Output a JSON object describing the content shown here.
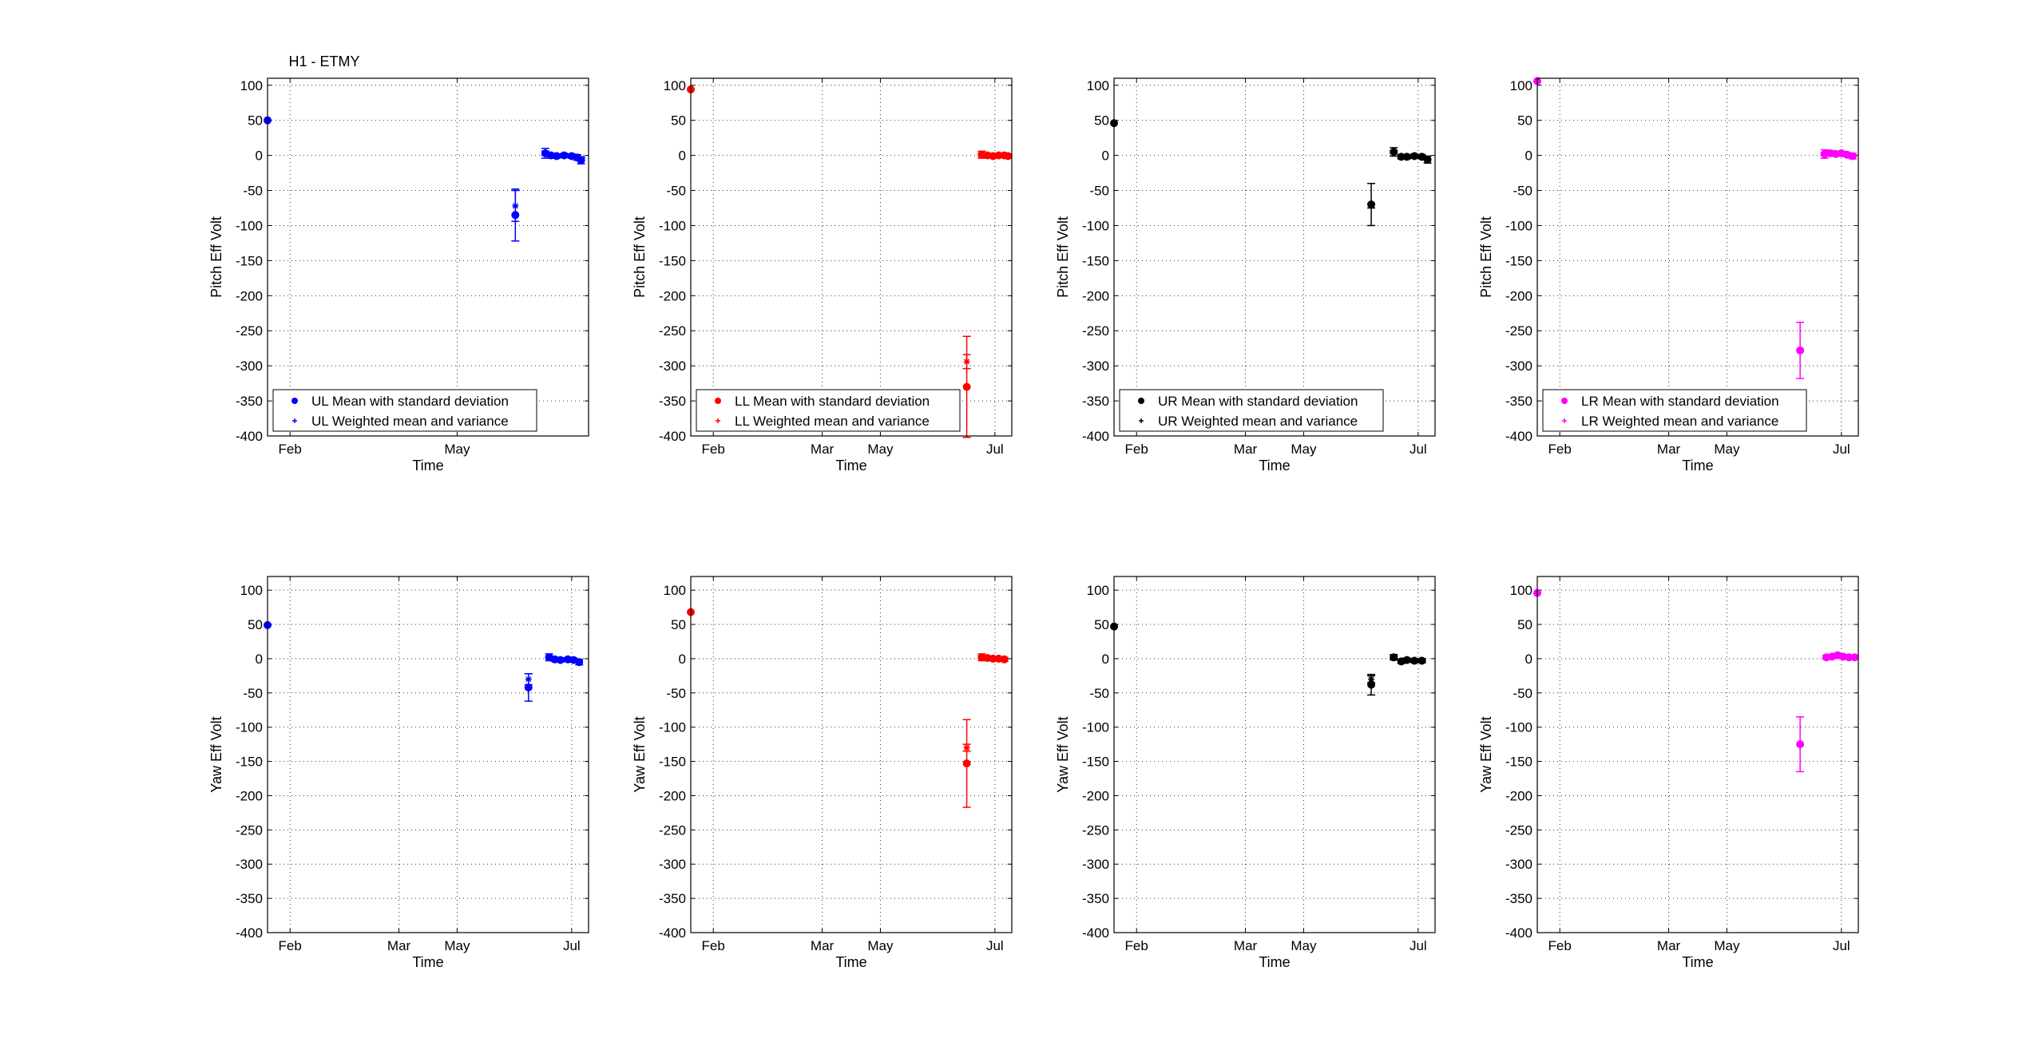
{
  "figure": {
    "title": "H1 - ETMY"
  },
  "chart_data": [
    {
      "type": "scatter",
      "title": "H1 - ETMY",
      "xlabel": "Time",
      "ylabel": "Pitch Eff Volt",
      "color": "#0000ff",
      "ylim": [
        -400,
        110
      ],
      "xlim": [
        "2015-01-20",
        "2015-07-10"
      ],
      "xticks": [
        {
          "date": "2015-02-01",
          "label": "Feb"
        },
        {
          "date": "2015-05-01",
          "label": "May"
        }
      ],
      "yticks": [
        100,
        50,
        0,
        -50,
        -100,
        -150,
        -200,
        -250,
        -300,
        -350,
        -400
      ],
      "grid": true,
      "legend_position": "bottom-left",
      "series": [
        {
          "name": "UL Mean with standard deviation",
          "marker": "dot",
          "points": [
            {
              "x": "2015-01-20",
              "y": 50,
              "err": 0
            },
            {
              "x": "2015-06-01",
              "y": -85,
              "err": 37
            },
            {
              "x": "2015-06-17",
              "y": 3,
              "err": 7
            },
            {
              "x": "2015-06-20",
              "y": 0,
              "err": 3
            },
            {
              "x": "2015-06-23",
              "y": -1,
              "err": 3
            },
            {
              "x": "2015-06-27",
              "y": 0,
              "err": 3
            },
            {
              "x": "2015-07-01",
              "y": -1,
              "err": 3
            },
            {
              "x": "2015-07-04",
              "y": -3,
              "err": 4
            },
            {
              "x": "2015-07-06",
              "y": -7,
              "err": 5
            }
          ]
        },
        {
          "name": "UL Weighted mean and variance",
          "marker": "star",
          "points": [
            {
              "x": "2015-06-01",
              "y": -72,
              "err": 22
            },
            {
              "x": "2015-06-17",
              "y": 3,
              "err": 3
            },
            {
              "x": "2015-06-23",
              "y": 0,
              "err": 2
            },
            {
              "x": "2015-07-01",
              "y": -1,
              "err": 2
            },
            {
              "x": "2015-07-06",
              "y": -6,
              "err": 2
            }
          ]
        }
      ]
    },
    {
      "type": "scatter",
      "title": "",
      "xlabel": "Time",
      "ylabel": "Pitch Eff Volt",
      "color": "#ff0000",
      "ylim": [
        -400,
        110
      ],
      "xlim": [
        "2015-01-20",
        "2015-07-10"
      ],
      "xticks": [
        {
          "date": "2015-02-01",
          "label": "Feb"
        },
        {
          "date": "2015-03-31",
          "label": "Mar"
        },
        {
          "date": "2015-05-01",
          "label": "May"
        },
        {
          "date": "2015-07-01",
          "label": "Jul"
        }
      ],
      "yticks": [
        100,
        50,
        0,
        -50,
        -100,
        -150,
        -200,
        -250,
        -300,
        -350,
        -400
      ],
      "grid": true,
      "legend_position": "bottom-left",
      "series": [
        {
          "name": "LL Mean with standard deviation",
          "marker": "dot",
          "points": [
            {
              "x": "2015-01-20",
              "y": 94,
              "err": 0
            },
            {
              "x": "2015-06-16",
              "y": -330,
              "err": 72
            },
            {
              "x": "2015-06-24",
              "y": 1,
              "err": 5
            },
            {
              "x": "2015-06-27",
              "y": 0,
              "err": 3
            },
            {
              "x": "2015-06-30",
              "y": -1,
              "err": 3
            },
            {
              "x": "2015-07-03",
              "y": 0,
              "err": 3
            },
            {
              "x": "2015-07-06",
              "y": 0,
              "err": 3
            },
            {
              "x": "2015-07-08",
              "y": -1,
              "err": 3
            }
          ]
        },
        {
          "name": "LL Weighted mean and variance",
          "marker": "star",
          "points": [
            {
              "x": "2015-06-16",
              "y": -294,
              "err": 10
            },
            {
              "x": "2015-06-24",
              "y": 1,
              "err": 2
            },
            {
              "x": "2015-06-30",
              "y": -1,
              "err": 2
            },
            {
              "x": "2015-07-06",
              "y": 0,
              "err": 2
            }
          ]
        }
      ]
    },
    {
      "type": "scatter",
      "title": "",
      "xlabel": "Time",
      "ylabel": "Pitch Eff Volt",
      "color": "#000000",
      "ylim": [
        -400,
        110
      ],
      "xlim": [
        "2015-01-20",
        "2015-07-10"
      ],
      "xticks": [
        {
          "date": "2015-02-01",
          "label": "Feb"
        },
        {
          "date": "2015-03-31",
          "label": "Mar"
        },
        {
          "date": "2015-05-01",
          "label": "May"
        },
        {
          "date": "2015-07-01",
          "label": "Jul"
        }
      ],
      "yticks": [
        100,
        50,
        0,
        -50,
        -100,
        -150,
        -200,
        -250,
        -300,
        -350,
        -400
      ],
      "grid": true,
      "legend_position": "bottom-left",
      "series": [
        {
          "name": "UR Mean with standard deviation",
          "marker": "dot",
          "points": [
            {
              "x": "2015-01-20",
              "y": 46,
              "err": 0
            },
            {
              "x": "2015-06-06",
              "y": -70,
              "err": 30
            },
            {
              "x": "2015-06-18",
              "y": 5,
              "err": 6
            },
            {
              "x": "2015-06-22",
              "y": -2,
              "err": 3
            },
            {
              "x": "2015-06-25",
              "y": -2,
              "err": 3
            },
            {
              "x": "2015-06-29",
              "y": -1,
              "err": 3
            },
            {
              "x": "2015-07-03",
              "y": -2,
              "err": 3
            },
            {
              "x": "2015-07-06",
              "y": -6,
              "err": 5
            }
          ]
        },
        {
          "name": "UR Weighted mean and variance",
          "marker": "star",
          "points": [
            {
              "x": "2015-06-06",
              "y": -72,
              "err": 3
            },
            {
              "x": "2015-06-18",
              "y": 5,
              "err": 2
            },
            {
              "x": "2015-06-25",
              "y": -2,
              "err": 2
            },
            {
              "x": "2015-07-03",
              "y": -2,
              "err": 2
            }
          ]
        }
      ]
    },
    {
      "type": "scatter",
      "title": "",
      "xlabel": "Time",
      "ylabel": "Pitch Eff Volt",
      "color": "#ff00ff",
      "ylim": [
        -400,
        110
      ],
      "xlim": [
        "2015-01-20",
        "2015-07-10"
      ],
      "xticks": [
        {
          "date": "2015-02-01",
          "label": "Feb"
        },
        {
          "date": "2015-03-31",
          "label": "Mar"
        },
        {
          "date": "2015-05-01",
          "label": "May"
        },
        {
          "date": "2015-07-01",
          "label": "Jul"
        }
      ],
      "yticks": [
        100,
        50,
        0,
        -50,
        -100,
        -150,
        -200,
        -250,
        -300,
        -350,
        -400
      ],
      "grid": true,
      "legend_position": "bottom-left",
      "series": [
        {
          "name": "LR Mean with standard deviation",
          "marker": "dot",
          "points": [
            {
              "x": "2015-01-20",
              "y": 106,
              "err": 0
            },
            {
              "x": "2015-06-09",
              "y": -278,
              "err": 40
            },
            {
              "x": "2015-06-22",
              "y": 2,
              "err": 6
            },
            {
              "x": "2015-06-25",
              "y": 3,
              "err": 4
            },
            {
              "x": "2015-06-28",
              "y": 2,
              "err": 3
            },
            {
              "x": "2015-07-01",
              "y": 3,
              "err": 3
            },
            {
              "x": "2015-07-04",
              "y": 1,
              "err": 3
            },
            {
              "x": "2015-07-07",
              "y": -1,
              "err": 4
            }
          ]
        },
        {
          "name": "LR Weighted mean and variance",
          "marker": "star",
          "points": [
            {
              "x": "2015-06-22",
              "y": 2,
              "err": 2
            },
            {
              "x": "2015-06-28",
              "y": 2,
              "err": 2
            },
            {
              "x": "2015-07-04",
              "y": 1,
              "err": 2
            }
          ]
        }
      ]
    },
    {
      "type": "scatter",
      "title": "",
      "xlabel": "Time",
      "ylabel": "Yaw Eff Volt",
      "color": "#0000ff",
      "ylim": [
        -400,
        120
      ],
      "xlim": [
        "2015-01-20",
        "2015-07-10"
      ],
      "xticks": [
        {
          "date": "2015-02-01",
          "label": "Feb"
        },
        {
          "date": "2015-03-31",
          "label": "Mar"
        },
        {
          "date": "2015-05-01",
          "label": "May"
        },
        {
          "date": "2015-07-01",
          "label": "Jul"
        }
      ],
      "yticks": [
        100,
        50,
        0,
        -50,
        -100,
        -150,
        -200,
        -250,
        -300,
        -350,
        -400
      ],
      "grid": true,
      "legend_position": "",
      "series": [
        {
          "name": "",
          "marker": "dot",
          "points": [
            {
              "x": "2015-01-20",
              "y": 49,
              "err": 0
            },
            {
              "x": "2015-06-08",
              "y": -42,
              "err": 20
            },
            {
              "x": "2015-06-19",
              "y": 2,
              "err": 5
            },
            {
              "x": "2015-06-22",
              "y": -1,
              "err": 3
            },
            {
              "x": "2015-06-25",
              "y": -2,
              "err": 3
            },
            {
              "x": "2015-06-29",
              "y": -1,
              "err": 3
            },
            {
              "x": "2015-07-02",
              "y": -2,
              "err": 3
            },
            {
              "x": "2015-07-05",
              "y": -5,
              "err": 4
            }
          ]
        },
        {
          "name": "",
          "marker": "star",
          "points": [
            {
              "x": "2015-06-08",
              "y": -30,
              "err": 8
            },
            {
              "x": "2015-06-19",
              "y": 2,
              "err": 2
            },
            {
              "x": "2015-06-25",
              "y": -2,
              "err": 2
            },
            {
              "x": "2015-07-02",
              "y": -2,
              "err": 2
            }
          ]
        }
      ]
    },
    {
      "type": "scatter",
      "title": "",
      "xlabel": "Time",
      "ylabel": "Yaw Eff Volt",
      "color": "#ff0000",
      "ylim": [
        -400,
        120
      ],
      "xlim": [
        "2015-01-20",
        "2015-07-10"
      ],
      "xticks": [
        {
          "date": "2015-02-01",
          "label": "Feb"
        },
        {
          "date": "2015-03-31",
          "label": "Mar"
        },
        {
          "date": "2015-05-01",
          "label": "May"
        },
        {
          "date": "2015-07-01",
          "label": "Jul"
        }
      ],
      "yticks": [
        100,
        50,
        0,
        -50,
        -100,
        -150,
        -200,
        -250,
        -300,
        -350,
        -400
      ],
      "grid": true,
      "legend_position": "",
      "series": [
        {
          "name": "",
          "marker": "dot",
          "points": [
            {
              "x": "2015-01-20",
              "y": 68,
              "err": 0
            },
            {
              "x": "2015-06-16",
              "y": -153,
              "err": 64
            },
            {
              "x": "2015-06-24",
              "y": 2,
              "err": 5
            },
            {
              "x": "2015-06-27",
              "y": 1,
              "err": 3
            },
            {
              "x": "2015-06-30",
              "y": 0,
              "err": 3
            },
            {
              "x": "2015-07-03",
              "y": 0,
              "err": 3
            },
            {
              "x": "2015-07-06",
              "y": -1,
              "err": 3
            }
          ]
        },
        {
          "name": "",
          "marker": "star",
          "points": [
            {
              "x": "2015-06-16",
              "y": -130,
              "err": 5
            },
            {
              "x": "2015-06-24",
              "y": 2,
              "err": 2
            },
            {
              "x": "2015-06-30",
              "y": 0,
              "err": 2
            },
            {
              "x": "2015-07-06",
              "y": -1,
              "err": 2
            }
          ]
        }
      ]
    },
    {
      "type": "scatter",
      "title": "",
      "xlabel": "Time",
      "ylabel": "Yaw Eff Volt",
      "color": "#000000",
      "ylim": [
        -400,
        120
      ],
      "xlim": [
        "2015-01-20",
        "2015-07-10"
      ],
      "xticks": [
        {
          "date": "2015-02-01",
          "label": "Feb"
        },
        {
          "date": "2015-03-31",
          "label": "Mar"
        },
        {
          "date": "2015-05-01",
          "label": "May"
        },
        {
          "date": "2015-07-01",
          "label": "Jul"
        }
      ],
      "yticks": [
        100,
        50,
        0,
        -50,
        -100,
        -150,
        -200,
        -250,
        -300,
        -350,
        -400
      ],
      "grid": true,
      "legend_position": "",
      "series": [
        {
          "name": "",
          "marker": "dot",
          "points": [
            {
              "x": "2015-01-20",
              "y": 47,
              "err": 0
            },
            {
              "x": "2015-06-06",
              "y": -38,
              "err": 15
            },
            {
              "x": "2015-06-18",
              "y": 2,
              "err": 4
            },
            {
              "x": "2015-06-22",
              "y": -4,
              "err": 3
            },
            {
              "x": "2015-06-25",
              "y": -2,
              "err": 3
            },
            {
              "x": "2015-06-29",
              "y": -3,
              "err": 3
            },
            {
              "x": "2015-07-03",
              "y": -3,
              "err": 3
            }
          ]
        },
        {
          "name": "",
          "marker": "star",
          "points": [
            {
              "x": "2015-06-06",
              "y": -30,
              "err": 5
            },
            {
              "x": "2015-06-18",
              "y": 2,
              "err": 2
            },
            {
              "x": "2015-06-25",
              "y": -2,
              "err": 2
            },
            {
              "x": "2015-07-03",
              "y": -3,
              "err": 2
            }
          ]
        }
      ]
    },
    {
      "type": "scatter",
      "title": "",
      "xlabel": "Time",
      "ylabel": "Yaw Eff Volt",
      "color": "#ff00ff",
      "ylim": [
        -400,
        120
      ],
      "xlim": [
        "2015-01-20",
        "2015-07-10"
      ],
      "xticks": [
        {
          "date": "2015-02-01",
          "label": "Feb"
        },
        {
          "date": "2015-03-31",
          "label": "Mar"
        },
        {
          "date": "2015-05-01",
          "label": "May"
        },
        {
          "date": "2015-07-01",
          "label": "Jul"
        }
      ],
      "yticks": [
        100,
        50,
        0,
        -50,
        -100,
        -150,
        -200,
        -250,
        -300,
        -350,
        -400
      ],
      "grid": true,
      "legend_position": "",
      "series": [
        {
          "name": "",
          "marker": "dot",
          "points": [
            {
              "x": "2015-01-20",
              "y": 96,
              "err": 0
            },
            {
              "x": "2015-06-09",
              "y": -125,
              "err": 40
            },
            {
              "x": "2015-06-23",
              "y": 2,
              "err": 3
            },
            {
              "x": "2015-06-26",
              "y": 3,
              "err": 3
            },
            {
              "x": "2015-06-29",
              "y": 5,
              "err": 3
            },
            {
              "x": "2015-07-02",
              "y": 3,
              "err": 3
            },
            {
              "x": "2015-07-05",
              "y": 2,
              "err": 3
            },
            {
              "x": "2015-07-08",
              "y": 2,
              "err": 3
            }
          ]
        },
        {
          "name": "",
          "marker": "star",
          "points": [
            {
              "x": "2015-06-23",
              "y": 2,
              "err": 2
            },
            {
              "x": "2015-06-29",
              "y": 5,
              "err": 2
            },
            {
              "x": "2015-07-05",
              "y": 2,
              "err": 2
            }
          ]
        }
      ]
    }
  ]
}
